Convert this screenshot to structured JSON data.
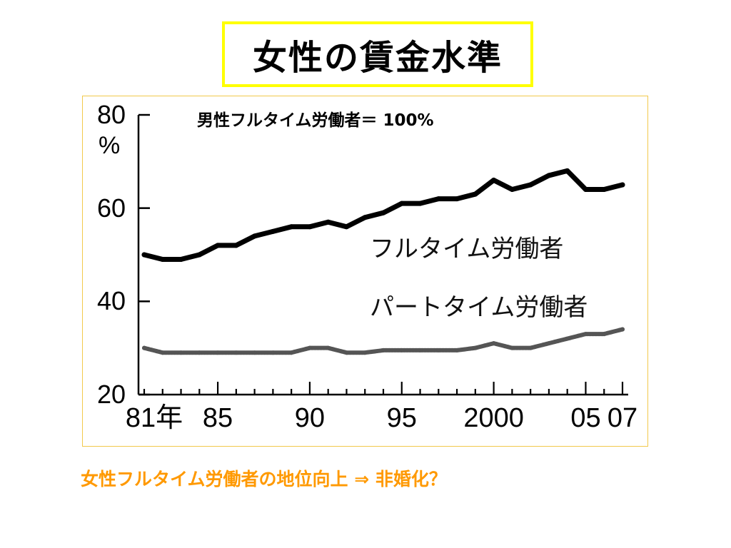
{
  "slide": {
    "title": "女性の賃金水準",
    "footer_note": "女性フルタイム労働者の地位向上 ⇒ 非婚化？"
  },
  "colors": {
    "title_border": "#ffff00",
    "frame_border": "#f2c94c",
    "footer_text": "#ff9900",
    "full_time_line": "#000000",
    "part_time_line": "#555555"
  },
  "chart_data": {
    "type": "line",
    "annotation": "男性フルタイム労働者＝ 100%",
    "ylabel": "%",
    "ylim": [
      20,
      80
    ],
    "yticks": [
      20,
      40,
      60,
      80
    ],
    "ytick_labels": [
      "20",
      "40",
      "60",
      "80"
    ],
    "xlim": [
      1981,
      2007
    ],
    "xtick_labels": [
      {
        "x": 1981,
        "label": "81年"
      },
      {
        "x": 1985,
        "label": "85"
      },
      {
        "x": 1990,
        "label": "90"
      },
      {
        "x": 1995,
        "label": "95"
      },
      {
        "x": 2000,
        "label": "2000"
      },
      {
        "x": 2005,
        "label": "05"
      },
      {
        "x": 2007,
        "label": "07"
      }
    ],
    "x": [
      1981,
      1982,
      1983,
      1984,
      1985,
      1986,
      1987,
      1988,
      1989,
      1990,
      1991,
      1992,
      1993,
      1994,
      1995,
      1996,
      1997,
      1998,
      1999,
      2000,
      2001,
      2002,
      2003,
      2004,
      2005,
      2006,
      2007
    ],
    "series": [
      {
        "name": "フルタイム労働者",
        "values": [
          50,
          49,
          49,
          50,
          52,
          52,
          54,
          55,
          56,
          56,
          57,
          56,
          58,
          59,
          61,
          61,
          62,
          62,
          63,
          66,
          64,
          65,
          67,
          68,
          64,
          64,
          65
        ]
      },
      {
        "name": "パートタイム労働者",
        "values": [
          30,
          29,
          29,
          29,
          29,
          29,
          29,
          29,
          29,
          30,
          30,
          29,
          29,
          29.5,
          29.5,
          29.5,
          29.5,
          29.5,
          30,
          31,
          30,
          30,
          31,
          32,
          33,
          33,
          34
        ]
      }
    ]
  }
}
